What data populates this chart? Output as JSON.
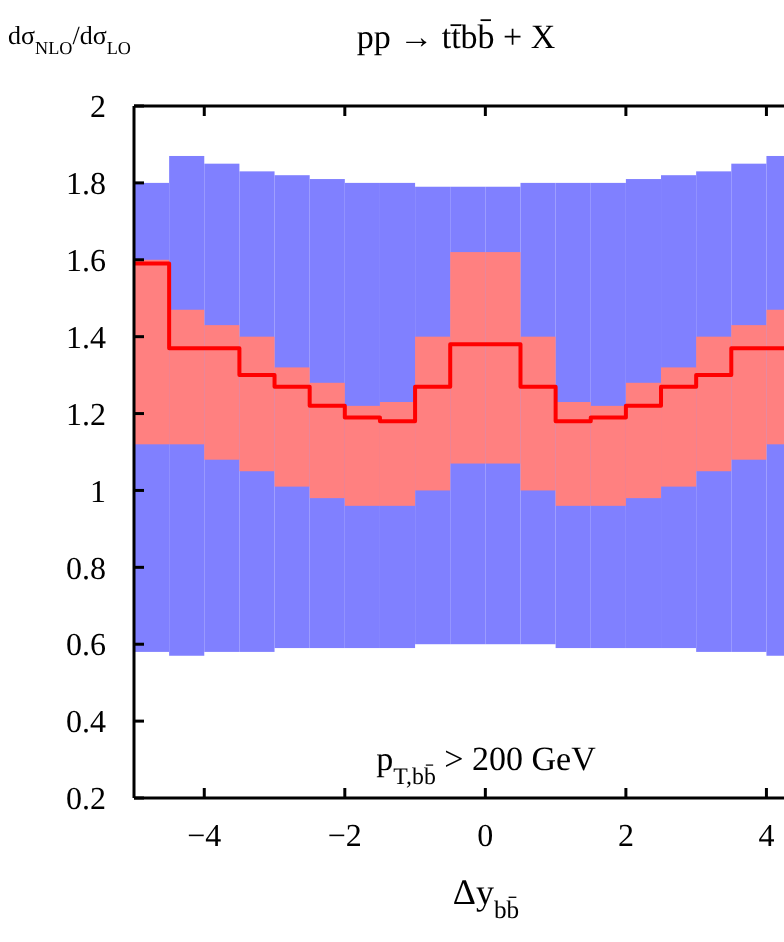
{
  "chart_data": {
    "type": "step",
    "title": "pp → tt̄bb̄ + X",
    "ylabel": "dσ$_{NLO}$/dσ$_{LO}$",
    "xlabel": "Δy$_{bb̄}$",
    "annotations": [
      "p$_{T,bb̄}$ > 200 GeV"
    ],
    "x": [
      -5,
      -4.5,
      -4,
      -3.5,
      -3,
      -2.5,
      -2,
      -1.5,
      -1,
      -0.5,
      0,
      0.5,
      1,
      1.5,
      2,
      2.5,
      3,
      3.5,
      4,
      4.25
    ],
    "xlim": [
      -5,
      4.25
    ],
    "xticks": [
      {
        "value": -4,
        "label": "−4"
      },
      {
        "value": -2,
        "label": "−2"
      },
      0,
      2,
      4
    ],
    "ylim": [
      0.2,
      2
    ],
    "yticks": [
      0.2,
      0.4,
      0.6,
      0.8,
      1,
      1.2,
      1.4,
      1.6,
      1.8,
      2
    ],
    "series": [
      {
        "type": "area",
        "color": "#8080ff",
        "values": [
          null,
          null,
          null,
          null,
          null,
          null,
          null,
          null,
          null,
          null,
          null,
          null,
          null,
          null,
          null,
          null,
          null,
          null,
          null,
          null
        ],
        "lower": [
          0.58,
          0.57,
          0.58,
          0.58,
          0.59,
          0.59,
          0.59,
          0.59,
          0.6,
          0.6,
          0.6,
          0.6,
          0.59,
          0.59,
          0.59,
          0.59,
          0.58,
          0.58,
          0.57,
          0.57
        ],
        "upper": [
          1.8,
          1.87,
          1.85,
          1.83,
          1.82,
          1.81,
          1.8,
          1.8,
          1.79,
          1.79,
          1.79,
          1.8,
          1.8,
          1.8,
          1.81,
          1.82,
          1.83,
          1.85,
          1.87,
          1.87
        ]
      },
      {
        "color": "#ff0000",
        "values": [
          1.59,
          1.37,
          1.37,
          1.3,
          1.27,
          1.22,
          1.19,
          1.18,
          1.27,
          1.38,
          1.38,
          1.27,
          1.18,
          1.19,
          1.22,
          1.27,
          1.3,
          1.37,
          1.37,
          1.37
        ],
        "lower": [
          1.12,
          1.12,
          1.08,
          1.05,
          1.01,
          0.98,
          0.96,
          0.96,
          1.0,
          1.07,
          1.07,
          1.0,
          0.96,
          0.96,
          0.98,
          1.01,
          1.05,
          1.08,
          1.12,
          1.12
        ],
        "upper": [
          1.6,
          1.47,
          1.43,
          1.4,
          1.32,
          1.28,
          1.22,
          1.23,
          1.4,
          1.62,
          1.62,
          1.4,
          1.23,
          1.22,
          1.28,
          1.32,
          1.4,
          1.43,
          1.47,
          1.47
        ]
      }
    ]
  }
}
